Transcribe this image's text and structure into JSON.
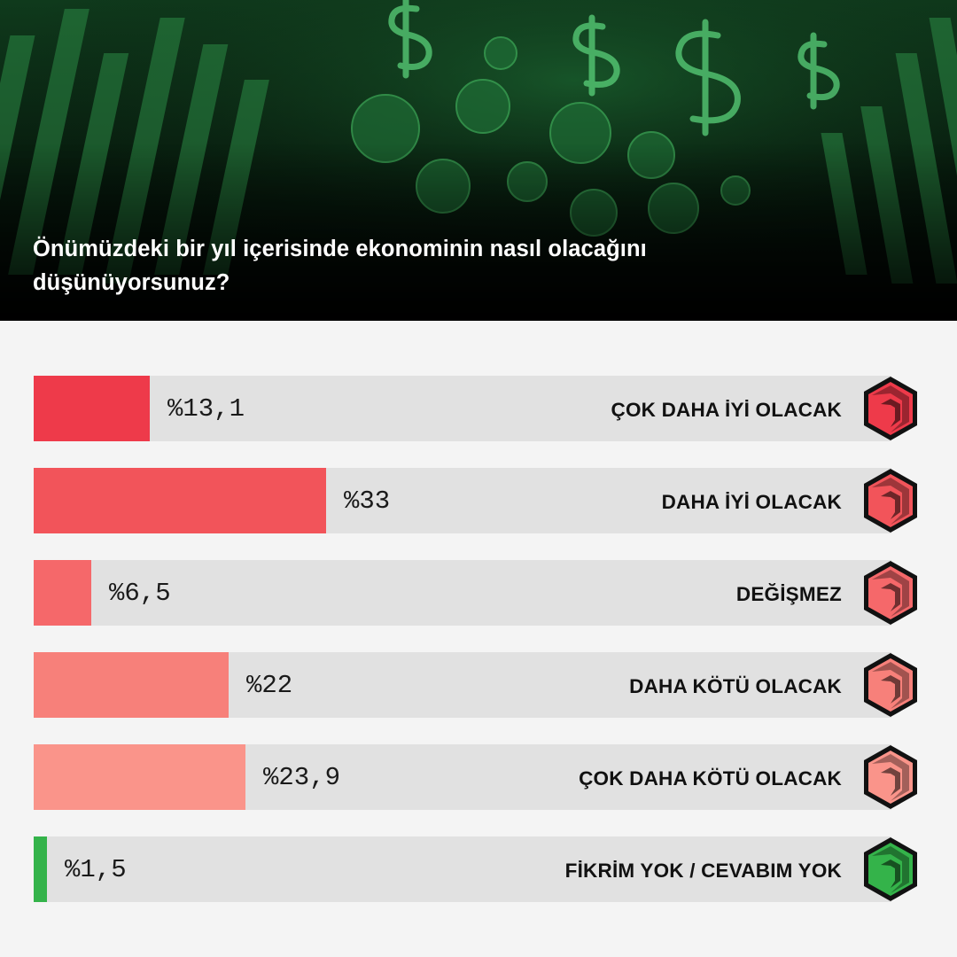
{
  "title": "Önümüzdeki bir yıl içerisinde ekonominin nasıl olacağını düşünüyorsunuz?",
  "header_image": {
    "description_icons": [
      "dollar-sign-icon",
      "virus-icon",
      "bar-chart-icon"
    ],
    "tint": "#2fbf4f"
  },
  "colors": {
    "background": "#f4f4f4",
    "track": "#e1e1e1"
  },
  "chart_data": {
    "type": "bar",
    "orientation": "horizontal",
    "title": "Önümüzdeki bir yıl içerisinde ekonominin nasıl olacağını düşünüyorsunuz?",
    "xlim": [
      0,
      100
    ],
    "categories": [
      "ÇOK DAHA İYİ OLACAK",
      "DAHA İYİ OLACAK",
      "DEĞİŞMEZ",
      "DAHA KÖTÜ OLACAK",
      "ÇOK DAHA KÖTÜ OLACAK",
      "FİKRİM YOK / CEVABIM YOK"
    ],
    "values": [
      13.1,
      33,
      6.5,
      22,
      23.9,
      1.5
    ],
    "labels": [
      "%13,1",
      "%33",
      "%6,5",
      "%22",
      "%23,9",
      "%1,5"
    ],
    "colors": [
      "#ee3a4a",
      "#f2545a",
      "#f5686a",
      "#f7807a",
      "#fa948a",
      "#34b34a"
    ]
  }
}
